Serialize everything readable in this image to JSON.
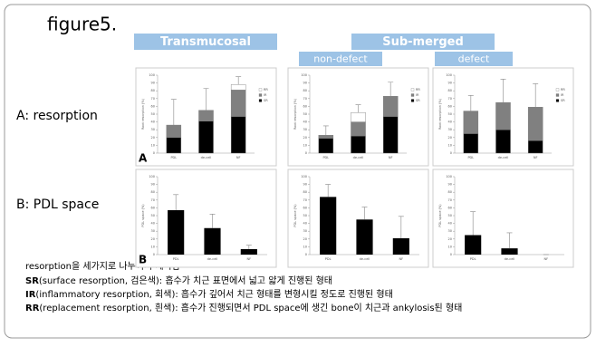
{
  "figure_title": "figure5.",
  "headers": {
    "transmucosal": "Transmucosal",
    "submerged": "Sub-merged",
    "non_defect": "non-defect",
    "defect": "defect"
  },
  "row_labels": [
    "A: resorption",
    "B: PDL space"
  ],
  "panel_letters": [
    "A",
    "B"
  ],
  "notes": {
    "intro": "resorption을 세가지로 나누어서 계측함",
    "items": [
      {
        "term": "SR",
        "text": "(surface resorption, 검은색):  흡수가 치근 표면에서 넓고 얇게 진행된 형태"
      },
      {
        "term": "IR",
        "text": "(inflammatory resorption, 회색):  흡수가 깊어서 치근 형태를 변형시킬 정도로 진행된 형태"
      },
      {
        "term": "RR",
        "text": "(replacement resorption, 흰색):  흡수가 진행되면서 PDL space에 생긴 bone이 치근과 ankylosis된 형태"
      }
    ]
  },
  "chart_data": [
    {
      "type": "stacked-bar",
      "y_label": "Root resorption (%)",
      "categories": [
        "PDL",
        "de-cell",
        "NF"
      ],
      "series": [
        {
          "name": "SR",
          "color": "#000000",
          "values": [
            20,
            41,
            47
          ]
        },
        {
          "name": "IR",
          "color": "#808080",
          "values": [
            16,
            14,
            34
          ]
        },
        {
          "name": "RR",
          "color": "#ffffff",
          "values": [
            0,
            0,
            7
          ]
        }
      ],
      "errors": [
        33,
        28,
        10
      ],
      "ylim": [
        0,
        100
      ],
      "yticks": [
        0,
        10,
        20,
        30,
        40,
        50,
        60,
        70,
        80,
        90,
        100
      ]
    },
    {
      "type": "stacked-bar",
      "y_label": "Root resorption (%)",
      "categories": [
        "PDL",
        "de-cell",
        "NF"
      ],
      "series": [
        {
          "name": "SR",
          "color": "#000000",
          "values": [
            19,
            22,
            47
          ]
        },
        {
          "name": "IR",
          "color": "#808080",
          "values": [
            4,
            18,
            26
          ]
        },
        {
          "name": "RR",
          "color": "#ffffff",
          "values": [
            0,
            12,
            0
          ]
        }
      ],
      "errors": [
        12,
        10,
        18
      ],
      "ylim": [
        0,
        100
      ],
      "yticks": [
        0,
        10,
        20,
        30,
        40,
        50,
        60,
        70,
        80,
        90,
        100
      ]
    },
    {
      "type": "stacked-bar",
      "y_label": "Root resorption (%)",
      "categories": [
        "PDL",
        "de-cell",
        "NF"
      ],
      "series": [
        {
          "name": "SR",
          "color": "#000000",
          "values": [
            25,
            30,
            16
          ]
        },
        {
          "name": "IR",
          "color": "#808080",
          "values": [
            29,
            35,
            43
          ]
        },
        {
          "name": "RR",
          "color": "#ffffff",
          "values": [
            0,
            0,
            0
          ]
        }
      ],
      "errors": [
        20,
        30,
        30
      ],
      "ylim": [
        0,
        100
      ],
      "yticks": [
        0,
        10,
        20,
        30,
        40,
        50,
        60,
        70,
        80,
        90,
        100
      ]
    },
    {
      "type": "bar",
      "y_label": "PDL space (%)",
      "categories": [
        "PDL",
        "de-cell",
        "NF"
      ],
      "values": [
        57,
        34,
        7
      ],
      "color": "#000000",
      "errors": [
        20,
        18,
        5
      ],
      "ylim": [
        0,
        100
      ],
      "yticks": [
        0,
        10,
        20,
        30,
        40,
        50,
        60,
        70,
        80,
        90,
        100
      ]
    },
    {
      "type": "bar",
      "y_label": "PDL space (%)",
      "categories": [
        "PDL",
        "de-cell",
        "NF"
      ],
      "values": [
        74,
        45,
        21
      ],
      "color": "#000000",
      "errors": [
        16,
        16,
        28
      ],
      "ylim": [
        0,
        100
      ],
      "yticks": [
        0,
        10,
        20,
        30,
        40,
        50,
        60,
        70,
        80,
        90,
        100
      ]
    },
    {
      "type": "bar",
      "y_label": "PDL space (%)",
      "categories": [
        "PDL",
        "de-cell",
        "NF"
      ],
      "values": [
        25,
        8,
        0
      ],
      "color": "#000000",
      "errors": [
        30,
        20,
        0
      ],
      "ylim": [
        0,
        100
      ],
      "yticks": [
        0,
        10,
        20,
        30,
        40,
        50,
        60,
        70,
        80,
        90,
        100
      ]
    }
  ]
}
